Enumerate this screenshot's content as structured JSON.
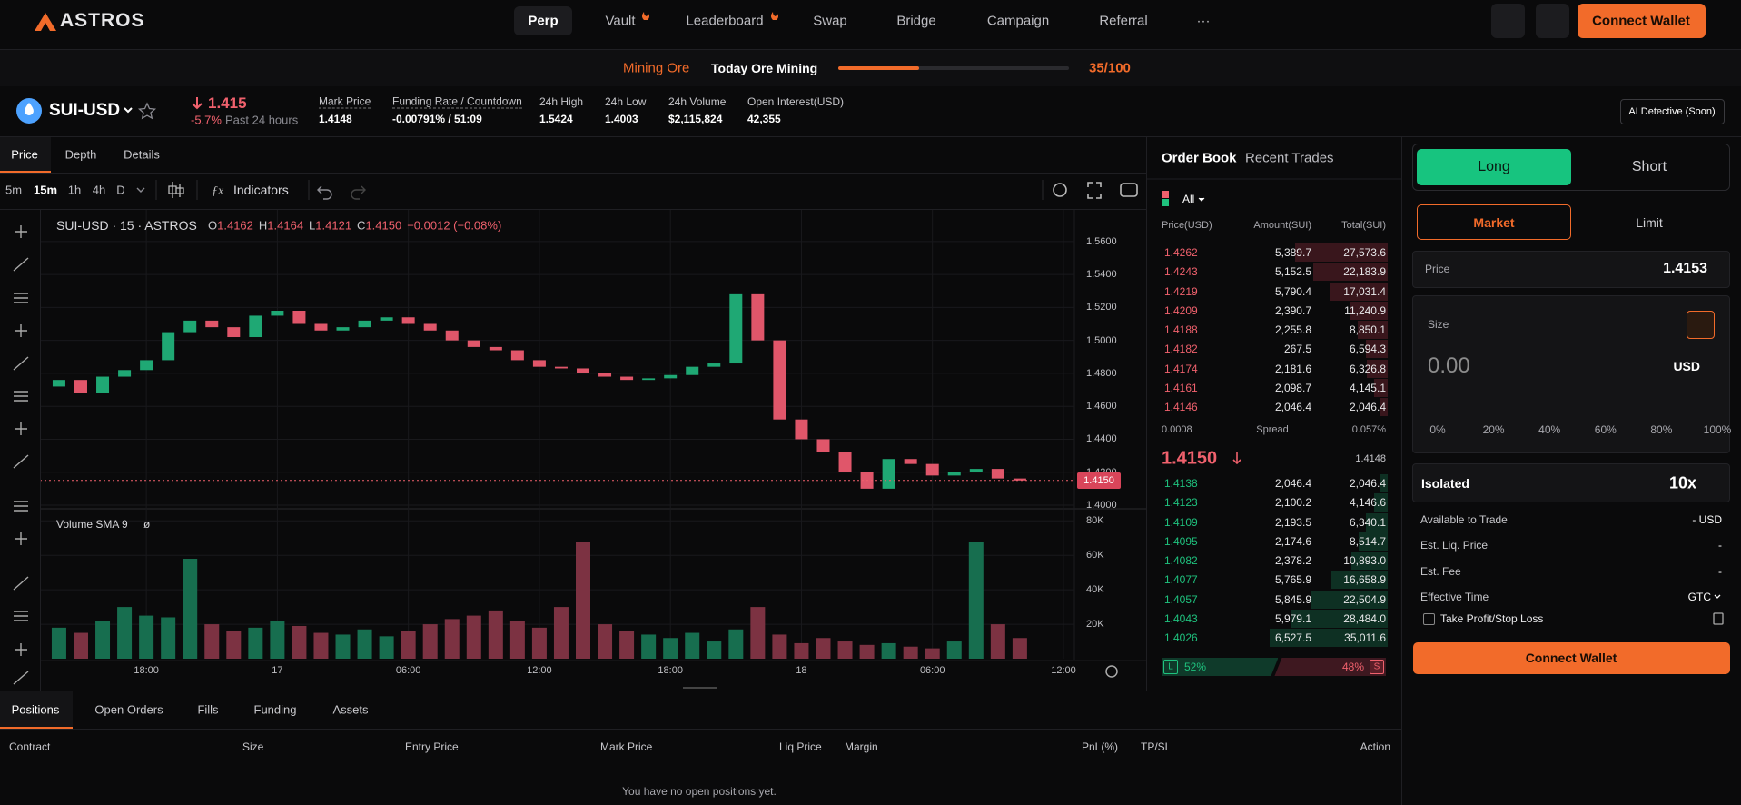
{
  "nav": {
    "logo": "ASTROS",
    "items": [
      "Perp",
      "Vault",
      "Leaderboard",
      "Swap",
      "Bridge",
      "Campaign",
      "Referral",
      "···"
    ],
    "connect": "Connect Wallet"
  },
  "banner": {
    "mining": "Mining Ore",
    "today": "Today Ore Mining",
    "progress": {
      "value": 35,
      "max": 100,
      "label": "35/100"
    }
  },
  "market": {
    "symbol": "SUI-USD",
    "price": "1.415",
    "change": "-5.7%",
    "change_period": "Past 24 hours",
    "stats": [
      {
        "label": "Mark Price",
        "value": "1.4148"
      },
      {
        "label": "Funding Rate / Countdown",
        "value": "-0.00791% / 51:09"
      },
      {
        "label": "24h High",
        "value": "1.5424"
      },
      {
        "label": "24h Low",
        "value": "1.4003"
      },
      {
        "label": "24h Volume",
        "value": "$2,115,824"
      },
      {
        "label": "Open Interest(USD)",
        "value": "42,355"
      }
    ],
    "ai_button": "AI Detective (Soon)"
  },
  "chart_tabs": [
    "Price",
    "Depth",
    "Details"
  ],
  "toolbar": {
    "intervals": [
      "5m",
      "15m",
      "1h",
      "4h",
      "D"
    ],
    "indicators": "Indicators"
  },
  "chart_data": {
    "type": "candlestick",
    "title": "SUI-USD · 15 · ASTROS",
    "ohlc_keys": [
      "O",
      "H",
      "L",
      "C"
    ],
    "ohlc_values": [
      "1.4162",
      "1.4164",
      "1.4121",
      "1.4150"
    ],
    "change": "−0.0012 (−0.08%)",
    "x": [
      14,
      15,
      16,
      17,
      18,
      19,
      20,
      21,
      22,
      23,
      24,
      25,
      26,
      27,
      28,
      29,
      30,
      31,
      32,
      33,
      34,
      35,
      36,
      37,
      38,
      39,
      40,
      41,
      42,
      43,
      44,
      45,
      46,
      47,
      48,
      49,
      50,
      51,
      52,
      53,
      54,
      55,
      56,
      57,
      58
    ],
    "open": [
      1.472,
      1.476,
      1.468,
      1.478,
      1.482,
      1.488,
      1.505,
      1.512,
      1.508,
      1.502,
      1.515,
      1.518,
      1.51,
      1.506,
      1.508,
      1.512,
      1.514,
      1.51,
      1.506,
      1.5,
      1.496,
      1.494,
      1.488,
      1.484,
      1.483,
      1.48,
      1.478,
      1.476,
      1.477,
      1.479,
      1.484,
      1.486,
      1.528,
      1.5,
      1.452,
      1.44,
      1.432,
      1.42,
      1.41,
      1.428,
      1.425,
      1.418,
      1.42,
      1.422,
      1.4162
    ],
    "close": [
      1.476,
      1.468,
      1.478,
      1.482,
      1.488,
      1.505,
      1.512,
      1.508,
      1.502,
      1.515,
      1.518,
      1.51,
      1.506,
      1.508,
      1.512,
      1.514,
      1.51,
      1.506,
      1.5,
      1.496,
      1.494,
      1.488,
      1.484,
      1.483,
      1.48,
      1.478,
      1.476,
      1.477,
      1.479,
      1.484,
      1.486,
      1.528,
      1.5,
      1.452,
      1.44,
      1.432,
      1.42,
      1.41,
      1.428,
      1.425,
      1.418,
      1.42,
      1.422,
      1.4162,
      1.415
    ],
    "volume": [
      18000,
      15000,
      22000,
      30000,
      25000,
      24000,
      58000,
      20000,
      16000,
      18000,
      22000,
      19000,
      15000,
      14000,
      17000,
      13000,
      16000,
      20000,
      23000,
      25000,
      28000,
      22000,
      18000,
      30000,
      68000,
      20000,
      16000,
      14000,
      12000,
      15000,
      10000,
      17000,
      30000,
      14000,
      9000,
      12000,
      10000,
      8000,
      9000,
      7000,
      6000,
      10000,
      68000,
      20000,
      12000
    ],
    "up_color": "#1fa874",
    "down_color": "#e0566a",
    "volume_up_color": "#176e4f",
    "volume_down_color": "#7c3242",
    "xlim": [
      13.42,
      60.5
    ],
    "xticks": [
      {
        "value": 18,
        "label": "18:00"
      },
      {
        "value": 24,
        "label": "17"
      },
      {
        "value": 30,
        "label": "06:00"
      },
      {
        "value": 36,
        "label": "12:00"
      },
      {
        "value": 42,
        "label": "18:00"
      },
      {
        "value": 48,
        "label": "18"
      },
      {
        "value": 54,
        "label": "06:00"
      },
      {
        "value": 60,
        "label": "12:00"
      }
    ],
    "ylim": [
      1.3978,
      1.5792
    ],
    "yticks": [
      {
        "value": 1.4,
        "label": "1.4000"
      },
      {
        "value": 1.42,
        "label": "1.4200"
      },
      {
        "value": 1.44,
        "label": "1.4400"
      },
      {
        "value": 1.46,
        "label": "1.4600"
      },
      {
        "value": 1.48,
        "label": "1.4800"
      },
      {
        "value": 1.5,
        "label": "1.5000"
      },
      {
        "value": 1.52,
        "label": "1.5200"
      },
      {
        "value": 1.54,
        "label": "1.5400"
      },
      {
        "value": 1.56,
        "label": "1.5600"
      }
    ],
    "last_price": {
      "value": 1.415,
      "label": "1.4150"
    },
    "volume_title": "Volume SMA 9",
    "volume_extra": "ø",
    "volume_ylim": [
      0,
      87000
    ],
    "volume_yticks": [
      {
        "value": 20000,
        "label": "20K"
      },
      {
        "value": 40000,
        "label": "40K"
      },
      {
        "value": 60000,
        "label": "60K"
      },
      {
        "value": 80000,
        "label": "80K"
      }
    ],
    "grid": true
  },
  "order_book": {
    "tabs": [
      "Order Book",
      "Recent Trades"
    ],
    "filter": "All",
    "headers": [
      "Price(USD)",
      "Amount(SUI)",
      "Total(SUI)"
    ],
    "asks": [
      {
        "price": "1.4262",
        "amount": "5,389.7",
        "total": {
          "value": 27573.6,
          "label": "27,573.6"
        }
      },
      {
        "price": "1.4243",
        "amount": "5,152.5",
        "total": {
          "value": 22183.9,
          "label": "22,183.9"
        }
      },
      {
        "price": "1.4219",
        "amount": "5,790.4",
        "total": {
          "value": 17031.4,
          "label": "17,031.4"
        }
      },
      {
        "price": "1.4209",
        "amount": "2,390.7",
        "total": {
          "value": 11240.9,
          "label": "11,240.9"
        }
      },
      {
        "price": "1.4188",
        "amount": "2,255.8",
        "total": {
          "value": 8850.1,
          "label": "8,850.1"
        }
      },
      {
        "price": "1.4182",
        "amount": "267.5",
        "total": {
          "value": 6594.3,
          "label": "6,594.3"
        }
      },
      {
        "price": "1.4174",
        "amount": "2,181.6",
        "total": {
          "value": 6326.8,
          "label": "6,326.8"
        }
      },
      {
        "price": "1.4161",
        "amount": "2,098.7",
        "total": {
          "value": 4145.1,
          "label": "4,145.1"
        }
      },
      {
        "price": "1.4146",
        "amount": "2,046.4",
        "total": {
          "value": 2046.4,
          "label": "2,046.4"
        }
      }
    ],
    "spread": {
      "value": "0.0008",
      "label": "Spread",
      "pct": "0.057%"
    },
    "mid": "1.4150",
    "mark": "1.4148",
    "bids": [
      {
        "price": "1.4138",
        "amount": "2,046.4",
        "total": {
          "value": 2046.4,
          "label": "2,046.4"
        }
      },
      {
        "price": "1.4123",
        "amount": "2,100.2",
        "total": {
          "value": 4146.6,
          "label": "4,146.6"
        }
      },
      {
        "price": "1.4109",
        "amount": "2,193.5",
        "total": {
          "value": 6340.1,
          "label": "6,340.1"
        }
      },
      {
        "price": "1.4095",
        "amount": "2,174.6",
        "total": {
          "value": 8514.7,
          "label": "8,514.7"
        }
      },
      {
        "price": "1.4082",
        "amount": "2,378.2",
        "total": {
          "value": 10893.0,
          "label": "10,893.0"
        }
      },
      {
        "price": "1.4077",
        "amount": "5,765.9",
        "total": {
          "value": 16658.9,
          "label": "16,658.9"
        }
      },
      {
        "price": "1.4057",
        "amount": "5,845.9",
        "total": {
          "value": 22504.9,
          "label": "22,504.9"
        }
      },
      {
        "price": "1.4043",
        "amount": "5,979.1",
        "total": {
          "value": 28484.0,
          "label": "28,484.0"
        }
      },
      {
        "price": "1.4026",
        "amount": "6,527.5",
        "total": {
          "value": 35011.6,
          "label": "35,011.6"
        }
      }
    ],
    "buy_key": "L",
    "buy": {
      "value": 52,
      "label": "52%"
    },
    "sell": {
      "value": 48,
      "label": "48%"
    },
    "sell_key": "S"
  },
  "trade": {
    "sides": [
      "Long",
      "Short"
    ],
    "order_types": [
      "Market",
      "Limit"
    ],
    "price_label": "Price",
    "price": "1.4153",
    "size_label": "Size",
    "size": "0.00",
    "unit": "USD",
    "slider": [
      {
        "value": 0,
        "label": "0%"
      },
      {
        "value": 20,
        "label": "20%"
      },
      {
        "value": 40,
        "label": "40%"
      },
      {
        "value": 60,
        "label": "60%"
      },
      {
        "value": 80,
        "label": "80%"
      },
      {
        "value": 100,
        "label": "100%"
      }
    ],
    "margin_mode": "Isolated",
    "leverage": "10x",
    "info": [
      {
        "label": "Available to Trade",
        "value": "- USD"
      },
      {
        "label": "Est. Liq. Price",
        "value": "-"
      },
      {
        "label": "Est. Fee",
        "value": "-"
      },
      {
        "label": "Effective Time",
        "value": "GTC"
      }
    ],
    "tpsl": "Take Profit/Stop Loss",
    "connect": "Connect Wallet"
  },
  "positions": {
    "tabs": [
      "Positions",
      "Open Orders",
      "Fills",
      "Funding",
      "Assets"
    ],
    "headers": [
      "Contract",
      "Size",
      "Entry Price",
      "Mark Price",
      "Liq Price",
      "Margin",
      "PnL(%)",
      "TP/SL",
      "Action"
    ],
    "empty": "You have no open positions yet."
  }
}
